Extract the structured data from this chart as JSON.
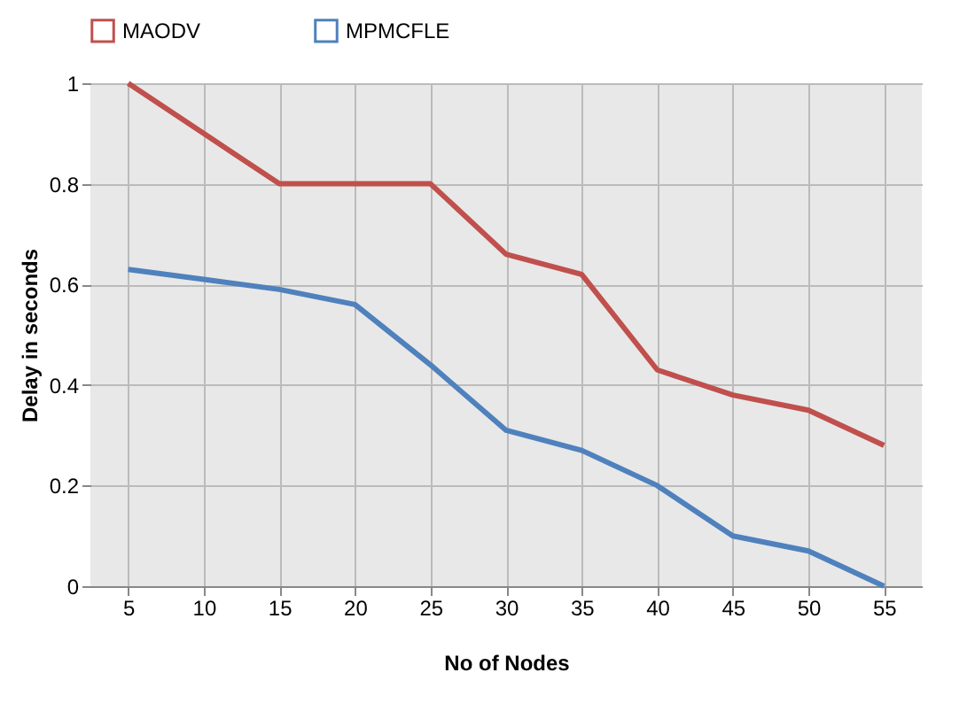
{
  "chart_data": {
    "type": "line",
    "xlabel": "No of Nodes",
    "ylabel": "Delay in seconds",
    "categories": [
      "5",
      "10",
      "15",
      "20",
      "25",
      "30",
      "35",
      "40",
      "45",
      "50",
      "55"
    ],
    "series": [
      {
        "name": "MAODV",
        "color": "#c0504d",
        "values": [
          1.0,
          0.9,
          0.8,
          0.8,
          0.8,
          0.66,
          0.62,
          0.43,
          0.38,
          0.35,
          0.28
        ]
      },
      {
        "name": "MPMCFLE",
        "color": "#4f81bd",
        "values": [
          0.63,
          0.61,
          0.59,
          0.56,
          0.44,
          0.31,
          0.27,
          0.2,
          0.1,
          0.07,
          0.0
        ]
      }
    ],
    "ylim": [
      0,
      1
    ],
    "yticks": [
      0,
      0.2,
      0.4,
      0.6,
      0.8,
      1
    ],
    "grid": true,
    "legend": "top",
    "marker": "none",
    "line_style": "solid"
  }
}
